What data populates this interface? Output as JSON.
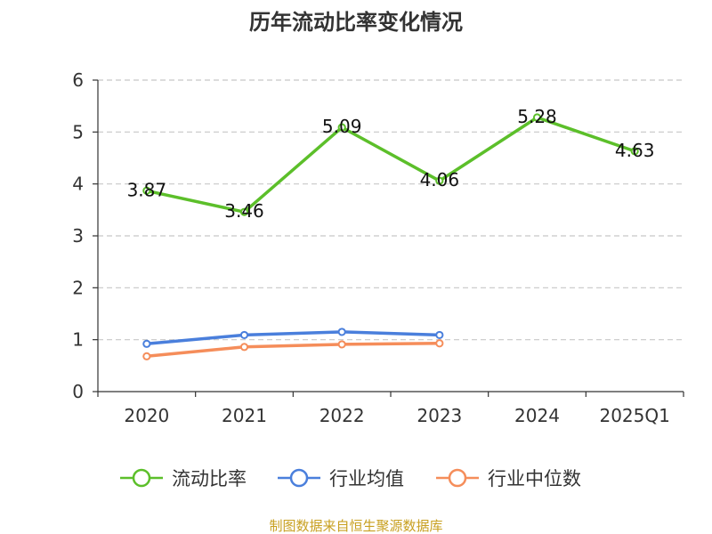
{
  "chart_data": {
    "type": "line",
    "title": "历年流动比率变化情况",
    "categories": [
      "2020",
      "2021",
      "2022",
      "2023",
      "2024",
      "2025Q1"
    ],
    "ylim": [
      0,
      6
    ],
    "yticks": [
      0,
      1,
      2,
      3,
      4,
      5,
      6
    ],
    "grid": true,
    "legend_position": "bottom",
    "series": [
      {
        "name": "流动比率",
        "color": "#5cbf2a",
        "values": [
          3.87,
          3.46,
          5.09,
          4.06,
          5.28,
          4.63
        ],
        "labels": [
          "3.87",
          "3.46",
          "5.09",
          "4.06",
          "5.28",
          "4.63"
        ]
      },
      {
        "name": "行业均值",
        "color": "#4a7fdc",
        "values": [
          0.92,
          1.09,
          1.15,
          1.09,
          null,
          null
        ]
      },
      {
        "name": "行业中位数",
        "color": "#f58d5a",
        "values": [
          0.68,
          0.86,
          0.91,
          0.93,
          null,
          null
        ]
      }
    ],
    "source": "制图数据来自恒生聚源数据库"
  }
}
